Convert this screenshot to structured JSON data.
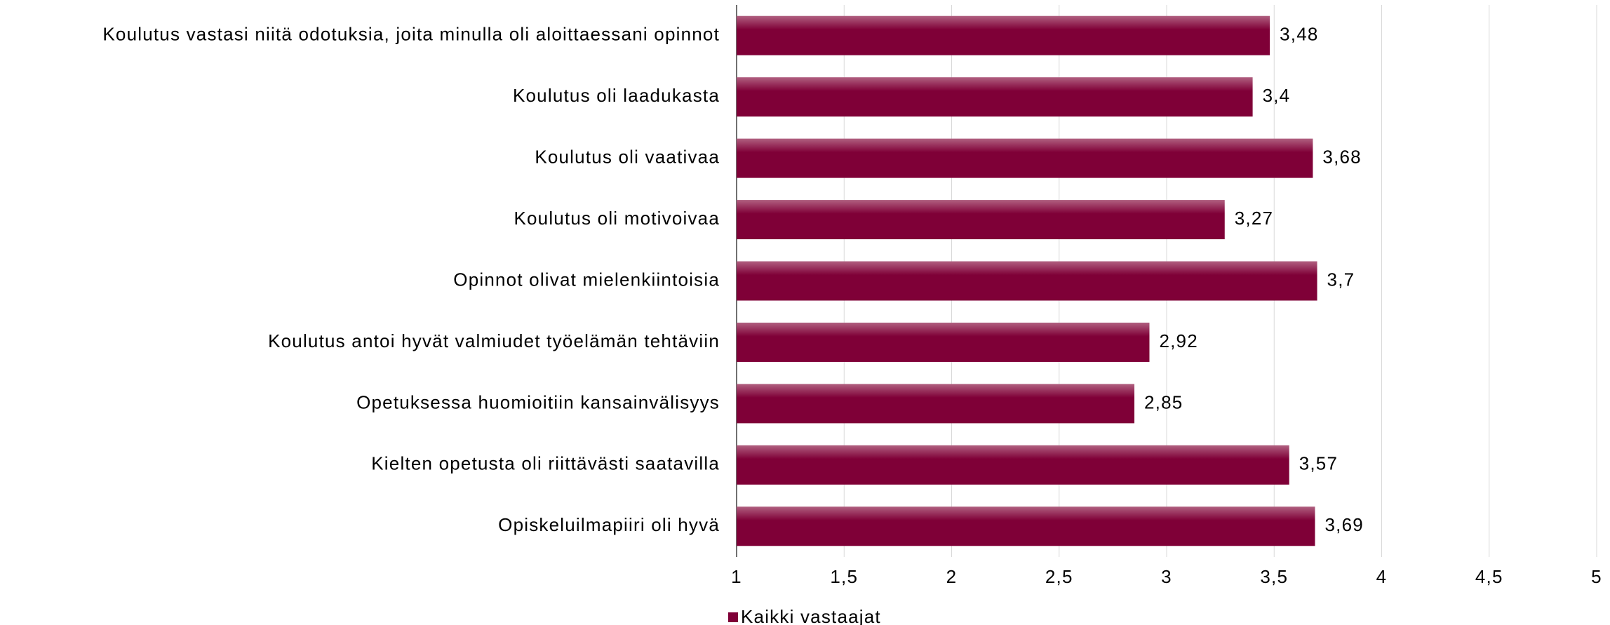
{
  "chart_data": {
    "type": "barh",
    "categories": [
      "Koulutus vastasi niitä odotuksia, joita minulla oli aloittaessani opinnot",
      "Koulutus oli laadukasta",
      "Koulutus oli vaativaa",
      "Koulutus oli motivoivaa",
      "Opinnot olivat mielenkiintoisia",
      "Koulutus antoi hyvät valmiudet työelämän tehtäviin",
      "Opetuksessa huomioitiin kansainvälisyys",
      "Kielten opetusta oli riittävästi saatavilla",
      "Opiskeluilmapiiri oli hyvä"
    ],
    "series": [
      {
        "name": "Kaikki vastaajat",
        "color": "#7f0037",
        "values": [
          3.48,
          3.4,
          3.68,
          3.27,
          3.7,
          2.92,
          2.85,
          3.57,
          3.69
        ],
        "value_labels": [
          "3,48",
          "3,4",
          "3,68",
          "3,27",
          "3,7",
          "2,92",
          "2,85",
          "3,57",
          "3,69"
        ]
      }
    ],
    "xlim": [
      1,
      5
    ],
    "xticks": [
      1,
      {
        "value": 1.5,
        "label": "1,5"
      },
      2,
      {
        "value": 2.5,
        "label": "2,5"
      },
      3,
      {
        "value": 3.5,
        "label": "3,5"
      },
      4,
      {
        "value": 4.5,
        "label": "4,5"
      },
      5
    ],
    "grid": true,
    "legend": "bottom"
  }
}
